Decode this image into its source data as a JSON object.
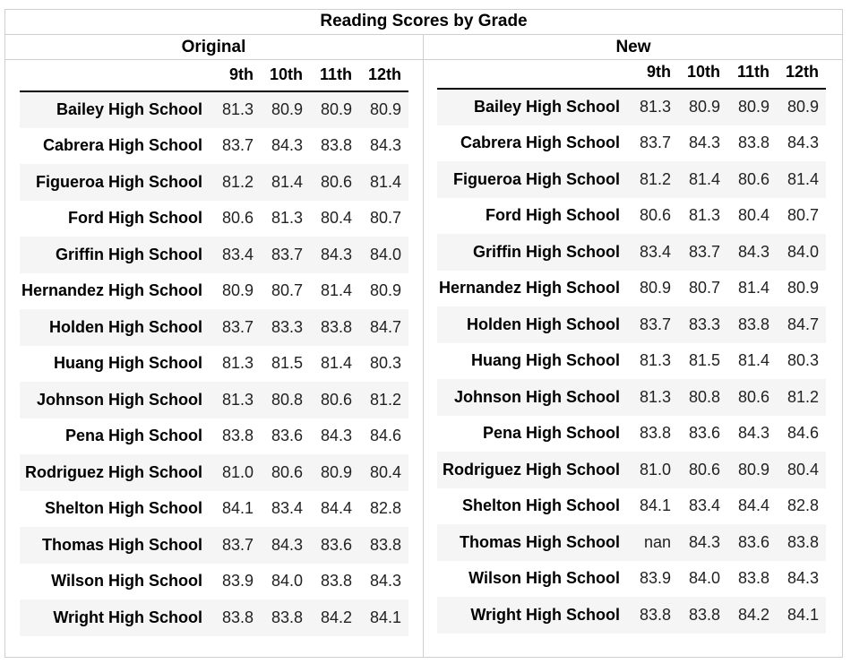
{
  "title": "Reading Scores by Grade",
  "original": {
    "label": "Original",
    "columns": [
      "",
      "9th",
      "10th",
      "11th",
      "12th"
    ],
    "rows": [
      {
        "school": "Bailey High School",
        "values": [
          "81.3",
          "80.9",
          "80.9",
          "80.9"
        ]
      },
      {
        "school": "Cabrera High School",
        "values": [
          "83.7",
          "84.3",
          "83.8",
          "84.3"
        ]
      },
      {
        "school": "Figueroa High School",
        "values": [
          "81.2",
          "81.4",
          "80.6",
          "81.4"
        ]
      },
      {
        "school": "Ford High School",
        "values": [
          "80.6",
          "81.3",
          "80.4",
          "80.7"
        ]
      },
      {
        "school": "Griffin High School",
        "values": [
          "83.4",
          "83.7",
          "84.3",
          "84.0"
        ]
      },
      {
        "school": "Hernandez High School",
        "values": [
          "80.9",
          "80.7",
          "81.4",
          "80.9"
        ]
      },
      {
        "school": "Holden High School",
        "values": [
          "83.7",
          "83.3",
          "83.8",
          "84.7"
        ]
      },
      {
        "school": "Huang High School",
        "values": [
          "81.3",
          "81.5",
          "81.4",
          "80.3"
        ]
      },
      {
        "school": "Johnson High School",
        "values": [
          "81.3",
          "80.8",
          "80.6",
          "81.2"
        ]
      },
      {
        "school": "Pena High School",
        "values": [
          "83.8",
          "83.6",
          "84.3",
          "84.6"
        ]
      },
      {
        "school": "Rodriguez High School",
        "values": [
          "81.0",
          "80.6",
          "80.9",
          "80.4"
        ]
      },
      {
        "school": "Shelton High School",
        "values": [
          "84.1",
          "83.4",
          "84.4",
          "82.8"
        ]
      },
      {
        "school": "Thomas High School",
        "values": [
          "83.7",
          "84.3",
          "83.6",
          "83.8"
        ]
      },
      {
        "school": "Wilson High School",
        "values": [
          "83.9",
          "84.0",
          "83.8",
          "84.3"
        ]
      },
      {
        "school": "Wright High School",
        "values": [
          "83.8",
          "83.8",
          "84.2",
          "84.1"
        ]
      }
    ]
  },
  "new": {
    "label": "New",
    "columns": [
      "",
      "9th",
      "10th",
      "11th",
      "12th"
    ],
    "rows": [
      {
        "school": "Bailey High School",
        "values": [
          "81.3",
          "80.9",
          "80.9",
          "80.9"
        ]
      },
      {
        "school": "Cabrera High School",
        "values": [
          "83.7",
          "84.3",
          "83.8",
          "84.3"
        ]
      },
      {
        "school": "Figueroa High School",
        "values": [
          "81.2",
          "81.4",
          "80.6",
          "81.4"
        ]
      },
      {
        "school": "Ford High School",
        "values": [
          "80.6",
          "81.3",
          "80.4",
          "80.7"
        ]
      },
      {
        "school": "Griffin High School",
        "values": [
          "83.4",
          "83.7",
          "84.3",
          "84.0"
        ]
      },
      {
        "school": "Hernandez High School",
        "values": [
          "80.9",
          "80.7",
          "81.4",
          "80.9"
        ]
      },
      {
        "school": "Holden High School",
        "values": [
          "83.7",
          "83.3",
          "83.8",
          "84.7"
        ]
      },
      {
        "school": "Huang High School",
        "values": [
          "81.3",
          "81.5",
          "81.4",
          "80.3"
        ]
      },
      {
        "school": "Johnson High School",
        "values": [
          "81.3",
          "80.8",
          "80.6",
          "81.2"
        ]
      },
      {
        "school": "Pena High School",
        "values": [
          "83.8",
          "83.6",
          "84.3",
          "84.6"
        ]
      },
      {
        "school": "Rodriguez High School",
        "values": [
          "81.0",
          "80.6",
          "80.9",
          "80.4"
        ]
      },
      {
        "school": "Shelton High School",
        "values": [
          "84.1",
          "83.4",
          "84.4",
          "82.8"
        ]
      },
      {
        "school": "Thomas High School",
        "values": [
          "nan",
          "84.3",
          "83.6",
          "83.8"
        ]
      },
      {
        "school": "Wilson High School",
        "values": [
          "83.9",
          "84.0",
          "83.8",
          "84.3"
        ]
      },
      {
        "school": "Wright High School",
        "values": [
          "83.8",
          "83.8",
          "84.2",
          "84.1"
        ]
      }
    ]
  }
}
